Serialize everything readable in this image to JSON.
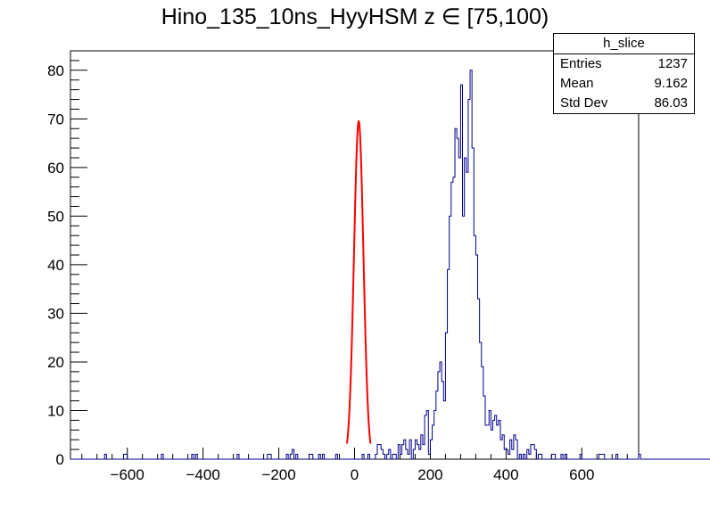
{
  "title": "Hino_135_10ns_HyyHSM z  ∈ [75,100)",
  "stats": {
    "name": "h_slice",
    "rows": [
      {
        "label": "Entries",
        "value": "1237"
      },
      {
        "label": "Mean",
        "value": "9.162"
      },
      {
        "label": "Std Dev",
        "value": "86.03"
      }
    ]
  },
  "colors": {
    "histogram": "#00008b",
    "fit": "#ff0000",
    "axis": "#000000"
  },
  "chart_data": {
    "type": "histogram",
    "xlim": [
      -750,
      750
    ],
    "ylim": [
      0,
      84
    ],
    "xticks": [
      -600,
      -400,
      -200,
      0,
      200,
      400,
      600
    ],
    "xtick_labels": [
      "−600",
      "−400",
      "−200",
      "0",
      "200",
      "400",
      "600"
    ],
    "yticks": [
      0,
      10,
      20,
      30,
      40,
      50,
      60,
      70,
      80
    ],
    "bin_width": 5,
    "bin_start": -750,
    "counts": [
      0,
      0,
      0,
      0,
      0,
      0,
      0,
      0,
      0,
      0,
      0,
      0,
      0,
      0,
      0,
      0,
      0,
      0,
      1,
      0,
      0,
      0,
      0,
      0,
      0,
      0,
      0,
      0,
      1,
      1,
      0,
      0,
      0,
      0,
      0,
      0,
      0,
      0,
      0,
      0,
      0,
      0,
      0,
      0,
      0,
      0,
      0,
      0,
      1,
      0,
      0,
      0,
      0,
      0,
      0,
      0,
      0,
      0,
      0,
      0,
      0,
      0,
      0,
      0,
      1,
      0,
      1,
      0,
      0,
      0,
      0,
      0,
      0,
      0,
      0,
      0,
      0,
      0,
      0,
      0,
      0,
      0,
      0,
      0,
      0,
      0,
      0,
      0,
      1,
      0,
      0,
      0,
      0,
      0,
      0,
      0,
      0,
      0,
      0,
      0,
      0,
      0,
      0,
      0,
      1,
      1,
      0,
      0,
      0,
      0,
      0,
      0,
      0,
      0,
      1,
      0,
      1,
      2,
      0,
      1,
      0,
      0,
      0,
      0,
      0,
      0,
      1,
      1,
      0,
      0,
      0,
      1,
      0,
      1,
      0,
      0,
      0,
      0,
      0,
      0,
      1,
      0,
      0,
      0,
      0,
      0,
      0,
      0,
      0,
      0,
      0,
      0,
      0,
      0,
      1,
      0,
      0,
      1,
      0,
      0,
      0,
      1,
      3,
      3,
      2,
      1,
      0,
      1,
      2,
      0,
      1,
      1,
      0,
      3,
      1,
      3,
      4,
      2,
      1,
      4,
      0,
      2,
      4,
      3,
      2,
      5,
      3,
      9,
      10,
      1,
      4,
      7,
      10,
      14,
      18,
      20,
      16,
      12,
      26,
      39,
      50,
      57,
      58,
      68,
      66,
      62,
      77,
      50,
      62,
      59,
      74,
      80,
      64,
      46,
      42,
      33,
      24,
      19,
      13,
      7,
      7,
      10,
      6,
      8,
      9,
      7,
      8,
      4,
      5,
      2,
      2,
      1,
      4,
      2,
      5,
      4,
      0,
      1,
      0,
      1,
      0,
      2,
      1,
      3,
      3,
      2,
      0,
      1,
      1,
      0,
      0,
      0,
      0,
      0,
      1,
      1,
      0,
      0,
      0,
      1,
      0,
      1,
      0,
      0,
      0,
      0,
      0,
      0,
      0,
      1,
      0,
      0,
      0,
      0,
      0,
      0,
      0,
      0,
      0,
      1,
      1,
      1,
      0,
      0,
      0,
      0,
      0,
      0,
      1,
      0,
      0,
      0,
      0,
      0,
      0,
      0,
      0,
      0,
      0,
      0,
      1,
      0,
      0,
      0,
      0,
      0,
      0,
      0,
      0,
      0,
      0,
      0,
      0,
      0,
      0,
      0,
      0,
      0,
      0,
      0,
      0,
      0,
      0,
      0,
      0,
      0,
      0,
      0,
      0,
      0,
      0,
      0,
      0,
      0,
      0,
      0,
      0,
      0,
      0,
      0,
      0,
      0,
      0,
      0,
      0
    ],
    "fit": {
      "type": "gaussian",
      "amplitude": 69.5,
      "mean": 11,
      "sigma": 12.5,
      "range": [
        -20,
        42
      ]
    }
  }
}
